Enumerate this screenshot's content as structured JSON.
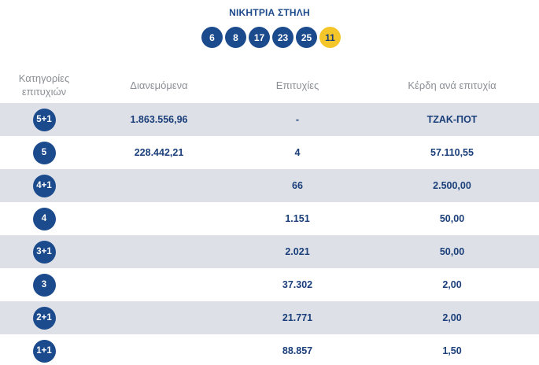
{
  "header": {
    "title": "ΝΙΚΗΤΡΙΑ ΣΤΗΛΗ",
    "balls": [
      "6",
      "8",
      "17",
      "23",
      "25"
    ],
    "joker": "11"
  },
  "table": {
    "columns": {
      "category_line1": "Κατηγορίες",
      "category_line2": "επιτυχιών",
      "distributed": "Διανεμόμενα",
      "winners": "Επιτυχίες",
      "prize": "Κέρδη ανά επιτυχία"
    },
    "rows": [
      {
        "category": "5+1",
        "distributed": "1.863.556,96",
        "winners": "-",
        "prize": "ΤΖΑΚ-ΠΟΤ"
      },
      {
        "category": "5",
        "distributed": "228.442,21",
        "winners": "4",
        "prize": "57.110,55"
      },
      {
        "category": "4+1",
        "distributed": "",
        "winners": "66",
        "prize": "2.500,00"
      },
      {
        "category": "4",
        "distributed": "",
        "winners": "1.151",
        "prize": "50,00"
      },
      {
        "category": "3+1",
        "distributed": "",
        "winners": "2.021",
        "prize": "50,00"
      },
      {
        "category": "3",
        "distributed": "",
        "winners": "37.302",
        "prize": "2,00"
      },
      {
        "category": "2+1",
        "distributed": "",
        "winners": "21.771",
        "prize": "2,00"
      },
      {
        "category": "1+1",
        "distributed": "",
        "winners": "88.857",
        "prize": "1,50"
      }
    ]
  },
  "colors": {
    "ball_blue": "#1b4a8d",
    "joker_yellow": "#f5c62a",
    "row_shade": "#dde0e6"
  }
}
